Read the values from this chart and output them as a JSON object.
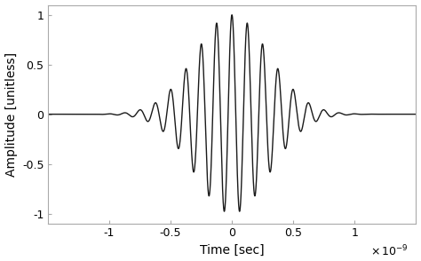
{
  "title": "",
  "xlabel": "Time [sec]",
  "ylabel": "Amplitude [unitless]",
  "xlim": [
    -1.5e-09,
    1.5e-09
  ],
  "ylim": [
    -1.1,
    1.1
  ],
  "xticks": [
    -1e-09,
    -5e-10,
    0.0,
    5e-10,
    1e-09
  ],
  "xtick_labels": [
    "-1",
    "-0.5",
    "0",
    "0.5",
    "1"
  ],
  "yticks": [
    -1,
    -0.5,
    0,
    0.5,
    1
  ],
  "ytick_labels": [
    "-1",
    "-0.5",
    "0",
    "0.5",
    "1"
  ],
  "line_color": "#1a1a1a",
  "line_width": 1.0,
  "background_color": "#ffffff",
  "fc": 8000000000.0,
  "sigma": 3e-10,
  "num_points": 5000
}
